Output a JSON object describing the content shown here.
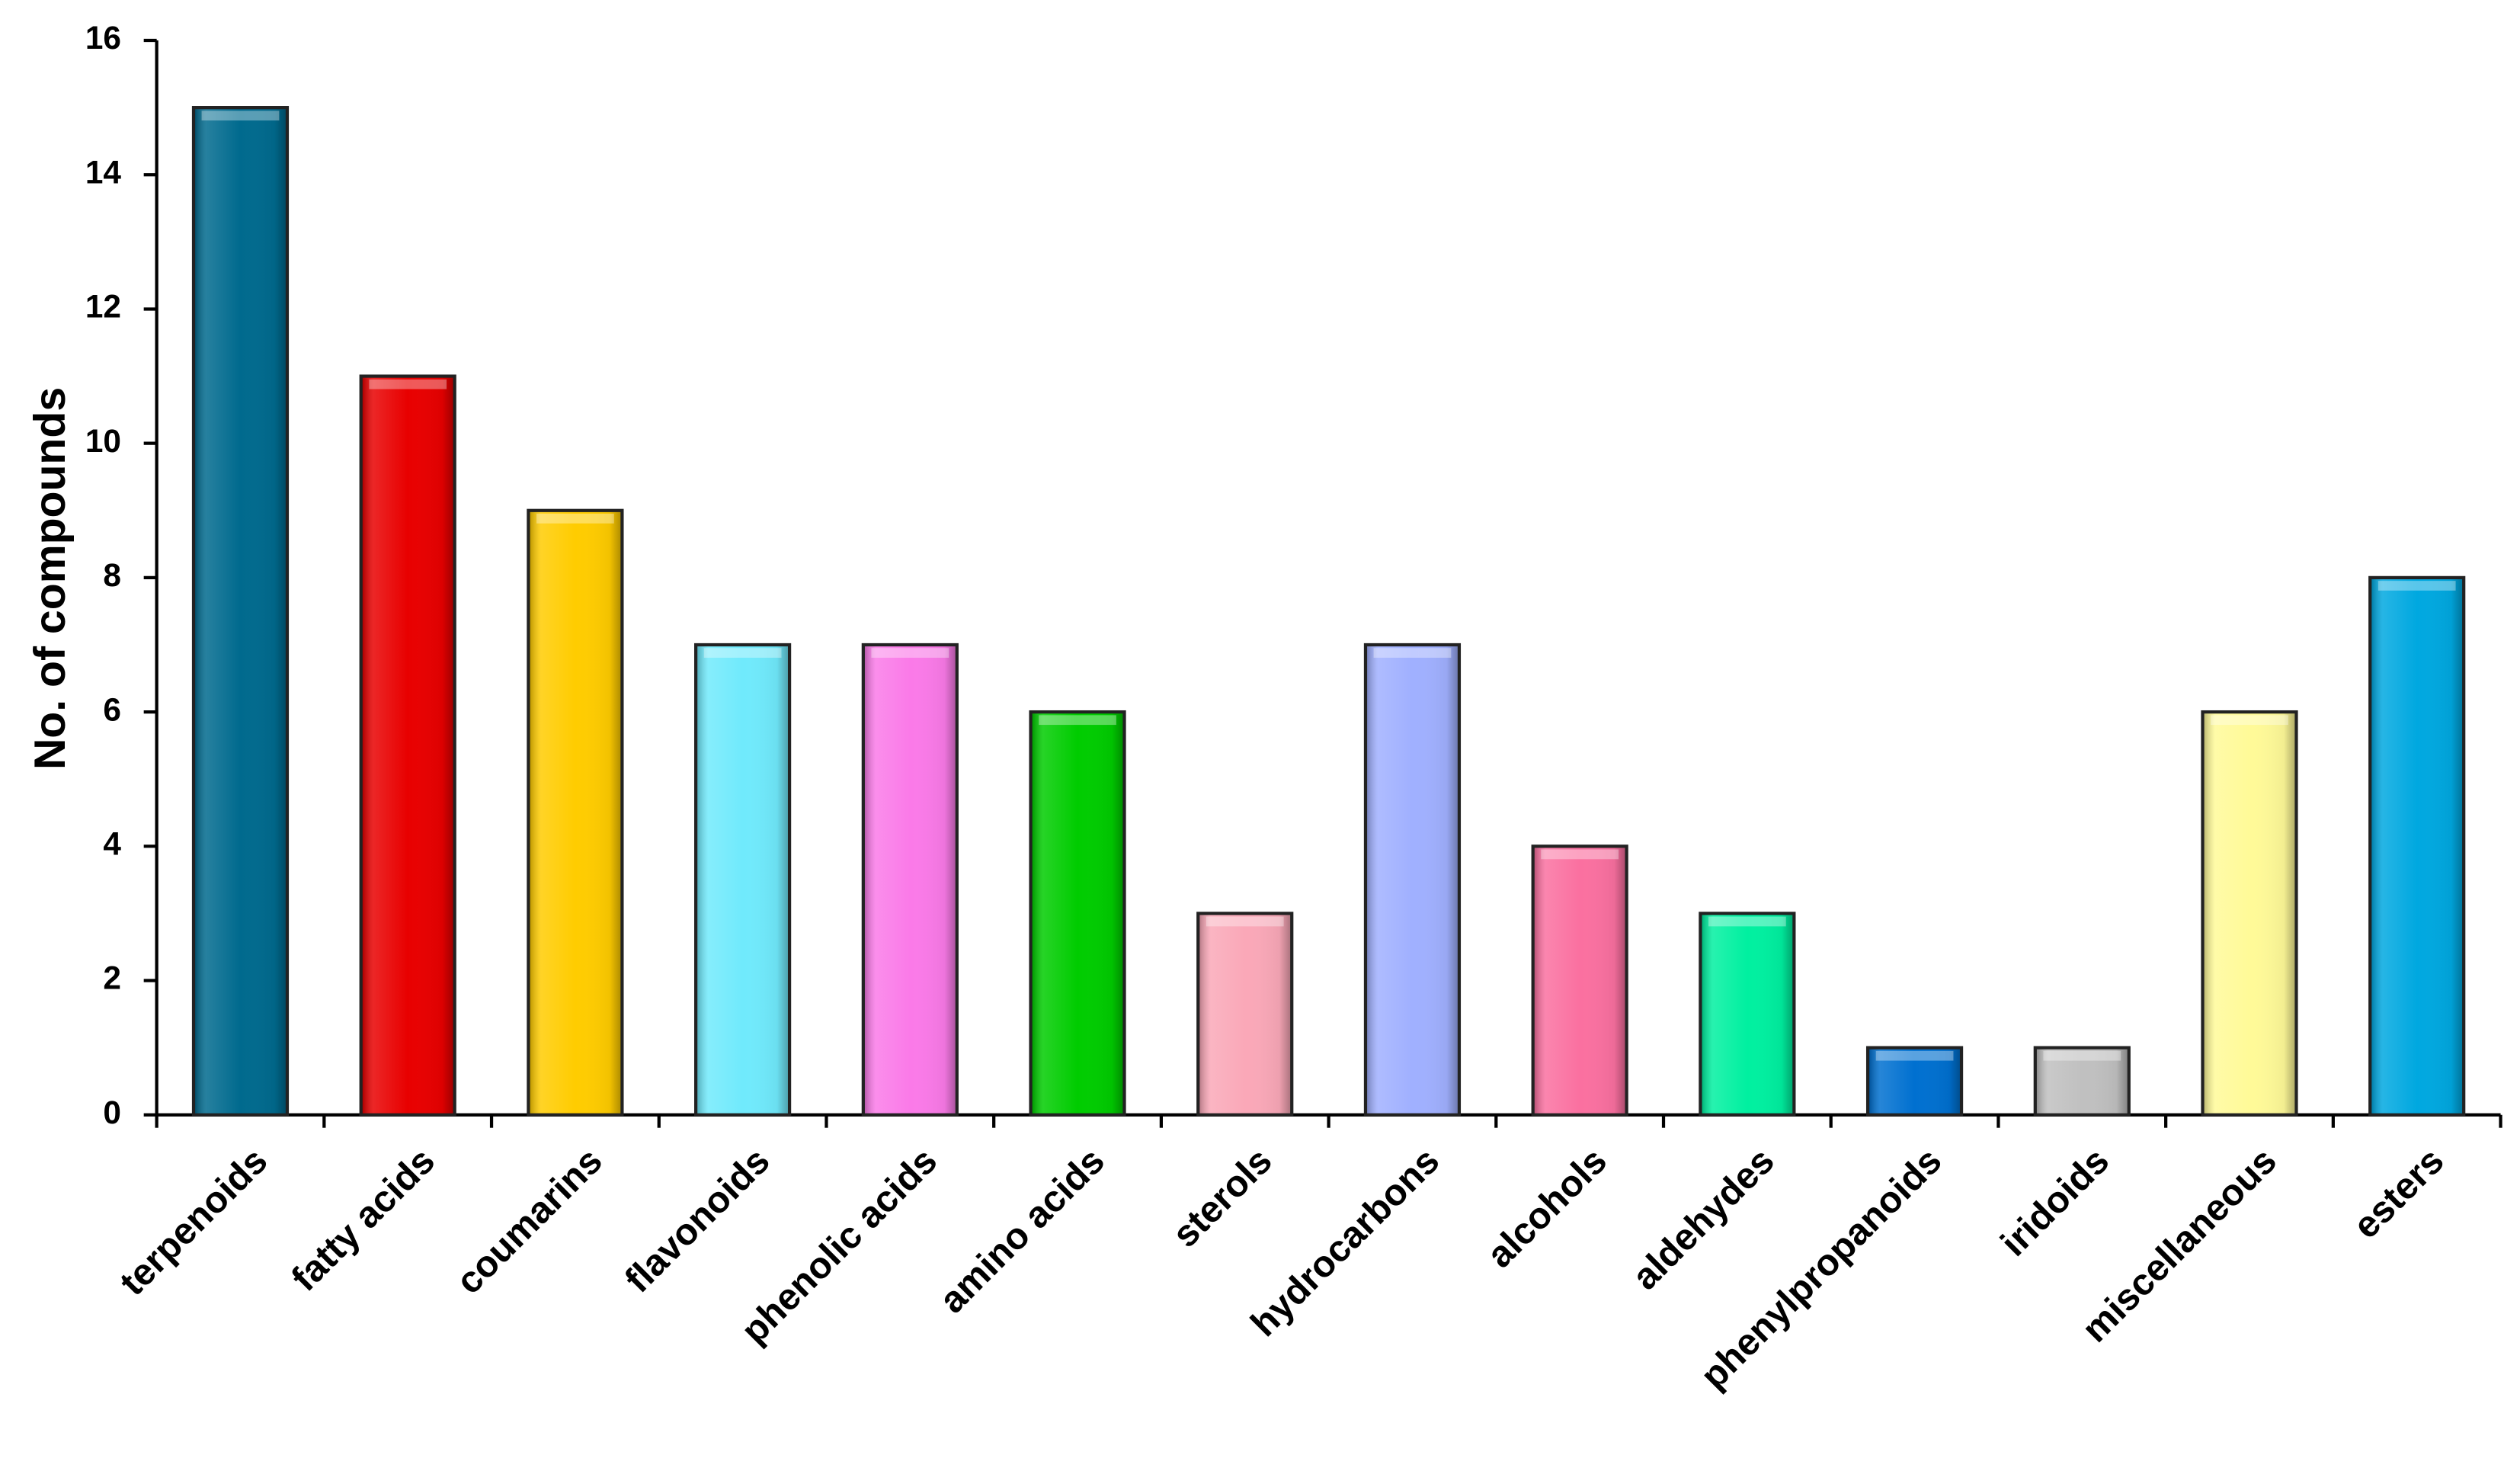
{
  "chart_data": {
    "type": "bar",
    "y_label": "No. of compounds",
    "categories": [
      "terpenoids",
      "fatty acids",
      "coumarins",
      "flavonoids",
      "phenolic acids",
      "amino acids",
      "sterols",
      "hydrocarbons",
      "alcohols",
      "aldehydes",
      "phenylpropanoids",
      "iridoids",
      "miscellaneous",
      "esters"
    ],
    "values": [
      15,
      11,
      9,
      7,
      7,
      6,
      3,
      7,
      4,
      3,
      1,
      1,
      6,
      8
    ],
    "colors": [
      "#006a8e",
      "#e80000",
      "#ffcc00",
      "#70eafc",
      "#fa7ae8",
      "#00cc00",
      "#faa8b8",
      "#a0b0ff",
      "#fa70a0",
      "#00f0a0",
      "#0070d0",
      "#c0c0c0",
      "#fffa98",
      "#00a8e0"
    ],
    "ylim": [
      0,
      16
    ],
    "yticks": [
      0,
      2,
      4,
      6,
      8,
      10,
      12,
      14,
      16
    ],
    "grid": false
  }
}
